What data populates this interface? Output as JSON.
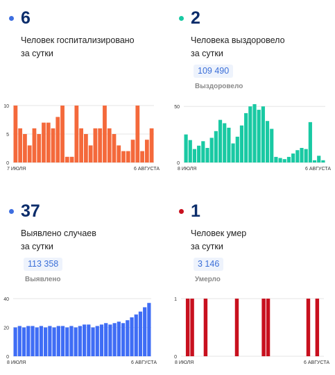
{
  "panels": [
    {
      "number": "6",
      "line1": "Человек госпитализировано",
      "line2": "за сутки",
      "total": "",
      "total_label": "",
      "color": "#f4693b",
      "dot_color": "#3e6ee0",
      "chart_data": {
        "type": "bar",
        "categories_start": "7 ИЮЛЯ",
        "categories_end": "6 АВГУСТА",
        "values": [
          10,
          6,
          5,
          3,
          6,
          5,
          7,
          7,
          6,
          8,
          10,
          1,
          1,
          10,
          6,
          5,
          3,
          6,
          6,
          10,
          6,
          5,
          3,
          2,
          2,
          4,
          10,
          2,
          4,
          6
        ],
        "yticks": [
          "10",
          "5",
          "0"
        ],
        "ylim": [
          0,
          10
        ]
      }
    },
    {
      "number": "2",
      "line1": "Человека выздоровело",
      "line2": "за сутки",
      "total": "109 490",
      "total_label": "Выздоровело",
      "color": "#19c9a3",
      "dot_color": "#19c9a3",
      "chart_data": {
        "type": "bar",
        "categories_start": "8 ИЮЛЯ",
        "categories_end": "6 АВГУСТА",
        "values": [
          25,
          20,
          12,
          15,
          19,
          13,
          22,
          28,
          38,
          35,
          31,
          17,
          23,
          33,
          44,
          50,
          52,
          47,
          50,
          37,
          30,
          5,
          4,
          3,
          5,
          8,
          11,
          13,
          12,
          36,
          2,
          6,
          2
        ],
        "yticks": [
          "50",
          "0"
        ],
        "ylim": [
          0,
          52
        ]
      }
    },
    {
      "number": "37",
      "line1": "Выявлено случаев",
      "line2": "за сутки",
      "total": "113 358",
      "total_label": "Выявлено",
      "color": "#3f6df5",
      "dot_color": "#3e6ee0",
      "chart_data": {
        "type": "bar",
        "categories_start": "8 ИЮЛЯ",
        "categories_end": "6 АВГУСТА",
        "values": [
          20,
          21,
          20,
          21,
          21,
          20,
          21,
          20,
          21,
          20,
          21,
          21,
          20,
          21,
          20,
          21,
          22,
          22,
          20,
          21,
          22,
          23,
          22,
          23,
          24,
          23,
          25,
          27,
          29,
          31,
          34,
          37
        ],
        "yticks": [
          "40",
          "20",
          "0"
        ],
        "ylim": [
          0,
          40
        ]
      }
    },
    {
      "number": "1",
      "line1": "Человек умер",
      "line2": "за сутки",
      "total": "3 146",
      "total_label": "Умерло",
      "color": "#c8101e",
      "dot_color": "#c8101e",
      "chart_data": {
        "type": "bar",
        "categories_start": "8 ИЮЛЯ",
        "categories_end": "6 АВГУСТА",
        "values": [
          0,
          1,
          1,
          0,
          0,
          1,
          0,
          0,
          0,
          0,
          0,
          0,
          1,
          0,
          0,
          0,
          0,
          0,
          1,
          1,
          0,
          0,
          0,
          0,
          0,
          0,
          0,
          0,
          1,
          0,
          1,
          0
        ],
        "yticks": [
          "1",
          "0"
        ],
        "ylim": [
          0,
          1
        ]
      }
    }
  ]
}
